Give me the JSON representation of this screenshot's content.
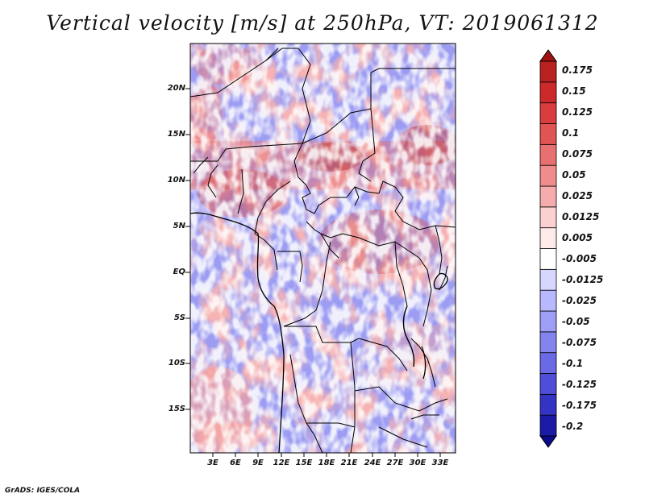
{
  "title": "Vertical velocity [m/s] at 250hPa, VT: 2019061312",
  "y_ticks": [
    "20N",
    "15N",
    "10N",
    "5N",
    "EQ",
    "5S",
    "10S",
    "15S"
  ],
  "x_ticks": [
    "3E",
    "6E",
    "9E",
    "12E",
    "15E",
    "18E",
    "21E",
    "24E",
    "27E",
    "30E",
    "33E"
  ],
  "colorbar": {
    "labels": [
      "0.175",
      "0.15",
      "0.125",
      "0.1",
      "0.075",
      "0.05",
      "0.025",
      "0.0125",
      "0.005",
      "-0.005",
      "-0.0125",
      "-0.025",
      "-0.05",
      "-0.075",
      "-0.1",
      "-0.125",
      "-0.175",
      "-0.2"
    ],
    "colors": [
      "#a51a1a",
      "#b92020",
      "#cc2a2a",
      "#d93d3d",
      "#e05454",
      "#e87070",
      "#f08c8c",
      "#f6acac",
      "#fbd0d0",
      "#ffeaea",
      "#ffffff",
      "#d6d6ff",
      "#b8b8ff",
      "#9e9ef6",
      "#8484ee",
      "#6a6ae6",
      "#4e4ed8",
      "#3434c4",
      "#1a1aa6",
      "#0a0a8a"
    ]
  },
  "credit": "GrADS: IGES/COLA"
}
